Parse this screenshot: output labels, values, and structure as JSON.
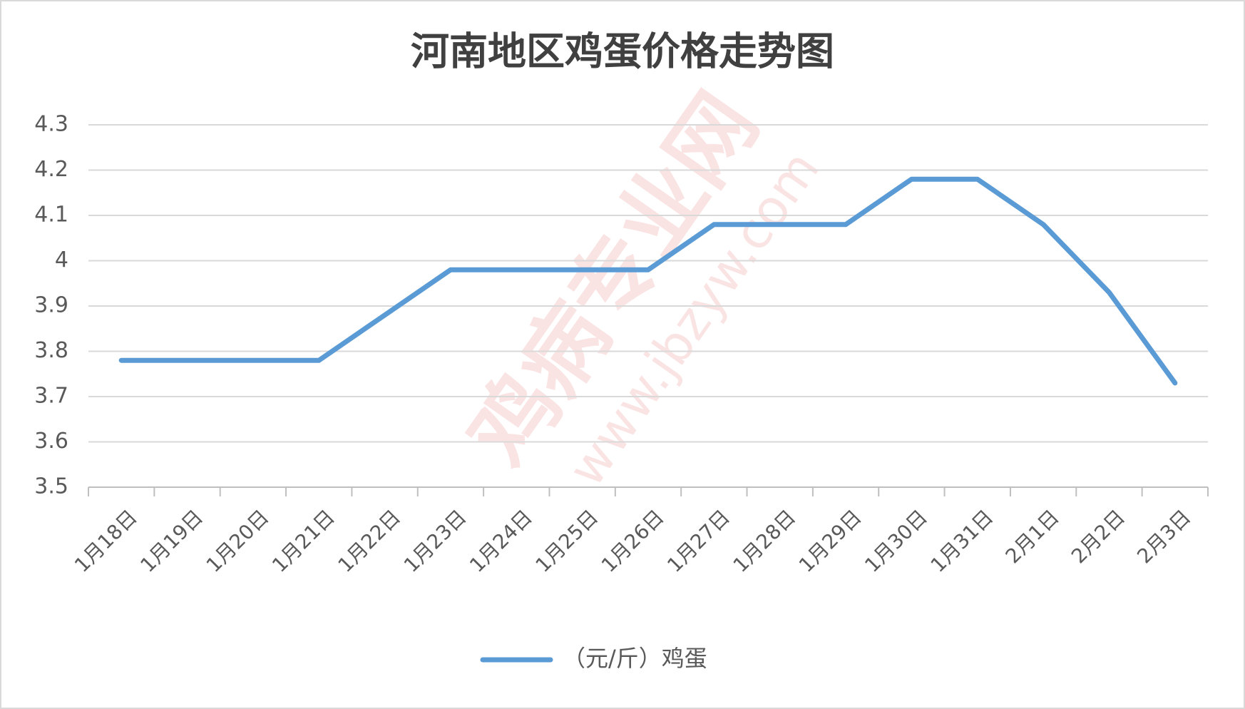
{
  "chart_data": {
    "type": "line",
    "title": "河南地区鸡蛋价格走势图",
    "categories": [
      "1月18日",
      "1月19日",
      "1月20日",
      "1月21日",
      "1月22日",
      "1月23日",
      "1月24日",
      "1月25日",
      "1月26日",
      "1月27日",
      "1月28日",
      "1月29日",
      "1月30日",
      "1月31日",
      "2月1日",
      "2月2日",
      "2月3日"
    ],
    "series": [
      {
        "name": "（元/斤）鸡蛋",
        "color": "#5b9bd5",
        "values": [
          3.78,
          3.78,
          3.78,
          3.78,
          3.88,
          3.98,
          3.98,
          3.98,
          3.98,
          4.08,
          4.08,
          4.08,
          4.18,
          4.18,
          4.08,
          3.93,
          3.73
        ]
      }
    ],
    "ylim": [
      3.5,
      4.3
    ],
    "yticks": [
      3.5,
      3.6,
      3.7,
      3.8,
      3.9,
      4,
      4.1,
      4.2,
      4.3
    ],
    "grid": true,
    "legend": "bottom",
    "watermark": [
      "鸡病专业网",
      "www.jbzyw.com"
    ]
  }
}
